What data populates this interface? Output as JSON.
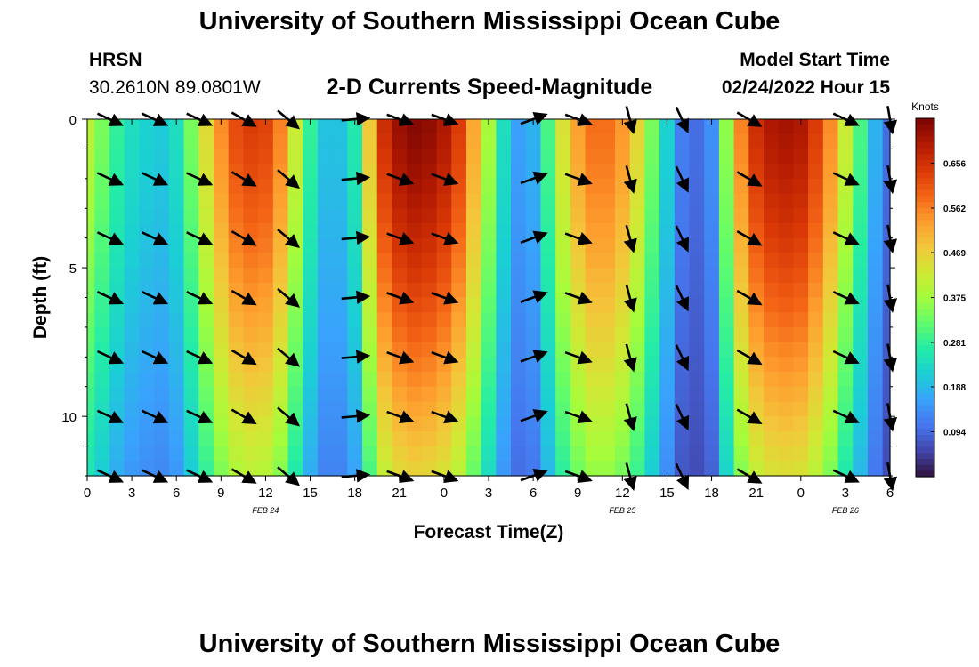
{
  "header": {
    "title": "University of Southern Mississippi Ocean Cube",
    "station": "HRSN",
    "coordinates": "30.2610N  89.0801W",
    "chart_title": "2-D Currents Speed-Magnitude",
    "model_start_label": "Model Start Time",
    "model_start_value": "02/24/2022 Hour 15"
  },
  "footer": {
    "title": "University of Southern Mississippi Ocean Cube"
  },
  "chart_data": {
    "type": "heatmap",
    "title": "2-D Currents Speed-Magnitude",
    "xlabel": "Forecast Time(Z)",
    "ylabel": "Depth (ft)",
    "x_ticks": [
      "0",
      "3",
      "6",
      "9",
      "12",
      "15",
      "18",
      "21",
      "0",
      "3",
      "6",
      "9",
      "12",
      "15",
      "18",
      "21",
      "0",
      "3",
      "6"
    ],
    "date_labels": [
      {
        "text": "FEB 24",
        "hour_index": 12
      },
      {
        "text": "FEB 25",
        "hour_index": 36
      },
      {
        "text": "FEB 26",
        "hour_index": 51
      }
    ],
    "y_ticks": [
      "0",
      "5",
      "10"
    ],
    "y_tick_values": [
      0,
      5,
      10
    ],
    "ylim": [
      0,
      12
    ],
    "xlim_hours": [
      0,
      54
    ],
    "colorbar": {
      "unit": "Knots",
      "ticks": [
        "0.656",
        "0.562",
        "0.469",
        "0.375",
        "0.281",
        "0.188",
        "0.094"
      ],
      "tick_values": [
        0.656,
        0.562,
        0.469,
        0.375,
        0.281,
        0.188,
        0.094
      ],
      "range": [
        0.0,
        0.75
      ],
      "colors": [
        "#30123b",
        "#4145ab",
        "#4675ed",
        "#39a2fc",
        "#1bcfd4",
        "#24eca6",
        "#61fc6c",
        "#a4fc3b",
        "#d1e834",
        "#f3c63a",
        "#fe9b2d",
        "#f36315",
        "#d93806",
        "#b11901",
        "#7a0403"
      ]
    },
    "speed_profile": {
      "x_hours": [
        0,
        1,
        2,
        3,
        4,
        5,
        6,
        7,
        8,
        9,
        10,
        11,
        12,
        13,
        14,
        15,
        16,
        17,
        18,
        19,
        20,
        21,
        22,
        23,
        24,
        25,
        26,
        27,
        28,
        29,
        30,
        31,
        32,
        33,
        34,
        35,
        36,
        37,
        38,
        39,
        40,
        41,
        42,
        43,
        44,
        45,
        46,
        47,
        48,
        49,
        50,
        51,
        52,
        53,
        54
      ],
      "surface_knots": [
        0.4,
        0.34,
        0.28,
        0.24,
        0.22,
        0.21,
        0.24,
        0.34,
        0.45,
        0.55,
        0.62,
        0.64,
        0.63,
        0.56,
        0.42,
        0.28,
        0.2,
        0.2,
        0.26,
        0.48,
        0.66,
        0.72,
        0.74,
        0.73,
        0.7,
        0.64,
        0.52,
        0.38,
        0.24,
        0.16,
        0.18,
        0.3,
        0.44,
        0.53,
        0.58,
        0.58,
        0.54,
        0.46,
        0.34,
        0.22,
        0.12,
        0.1,
        0.14,
        0.36,
        0.56,
        0.66,
        0.7,
        0.71,
        0.7,
        0.64,
        0.55,
        0.42,
        0.3,
        0.18,
        0.1
      ],
      "depth_attenuation_at_12ft": 0.62
    },
    "vectors": {
      "depths_ft": [
        0,
        2,
        4,
        6,
        8,
        10,
        12
      ],
      "x_hours": [
        1.5,
        4.5,
        7.5,
        10.5,
        13.5,
        18,
        21,
        24,
        30,
        33,
        36.5,
        40,
        44.5,
        51,
        54
      ],
      "angles_deg": [
        -25,
        -25,
        -25,
        -30,
        -40,
        5,
        -20,
        -20,
        20,
        -20,
        -75,
        -65,
        -30,
        -25,
        -80
      ]
    }
  }
}
